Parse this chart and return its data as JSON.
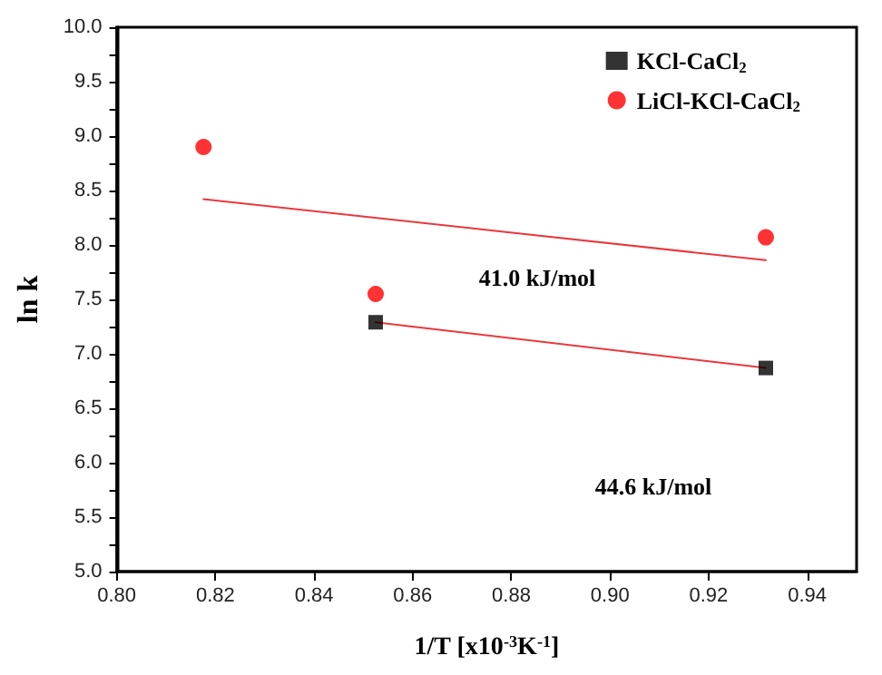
{
  "chart_data": {
    "type": "scatter",
    "xlabel": "1/T [x10$^{-3}$K$^{-1}$]",
    "ylabel": "ln k",
    "xlim": [
      0.8,
      0.95
    ],
    "xticks": [
      {
        "value": 0.8,
        "label": "0.80"
      },
      0.82,
      0.84,
      0.86,
      0.88,
      {
        "value": 0.9,
        "label": "0.90"
      },
      0.92,
      0.94
    ],
    "ylim": [
      5.0,
      10.0
    ],
    "yticks": [
      {
        "value": 5,
        "label": "5.0"
      },
      5.5,
      {
        "value": 6,
        "label": "6.0"
      },
      6.5,
      {
        "value": 7,
        "label": "7.0"
      },
      7.5,
      {
        "value": 8,
        "label": "8.0"
      },
      8.5,
      {
        "value": 9,
        "label": "9.0"
      },
      9.5,
      {
        "value": 10,
        "label": "10.0"
      }
    ],
    "grid": false,
    "legend": "top right",
    "series": [
      {
        "name": "KCl-CaCl$_{2}$",
        "marker": "square",
        "color": "#000000",
        "x": [
          0.8525,
          0.9316
        ],
        "values": [
          7.29,
          6.87
        ]
      },
      {
        "name": "LiCl-KCl-CaCl$_{2}$",
        "marker": "circle",
        "color": "#ff0000",
        "x": [
          0.8176,
          0.8525,
          0.9316
        ],
        "values": [
          8.9,
          7.55,
          8.07
        ]
      },
      {
        "type": "line",
        "marker": "none",
        "line_style": "solid",
        "color": "#e8383d",
        "x": [
          0.8176,
          0.9316
        ],
        "values": [
          8.42,
          7.86
        ]
      },
      {
        "type": "line",
        "marker": "none",
        "line_style": "solid",
        "color": "#e8383d",
        "x": [
          0.8525,
          0.9316
        ],
        "values": [
          7.29,
          6.87
        ]
      }
    ],
    "annotations": [
      "41.0 kJ/mol",
      "44.6 kJ/mol"
    ]
  }
}
